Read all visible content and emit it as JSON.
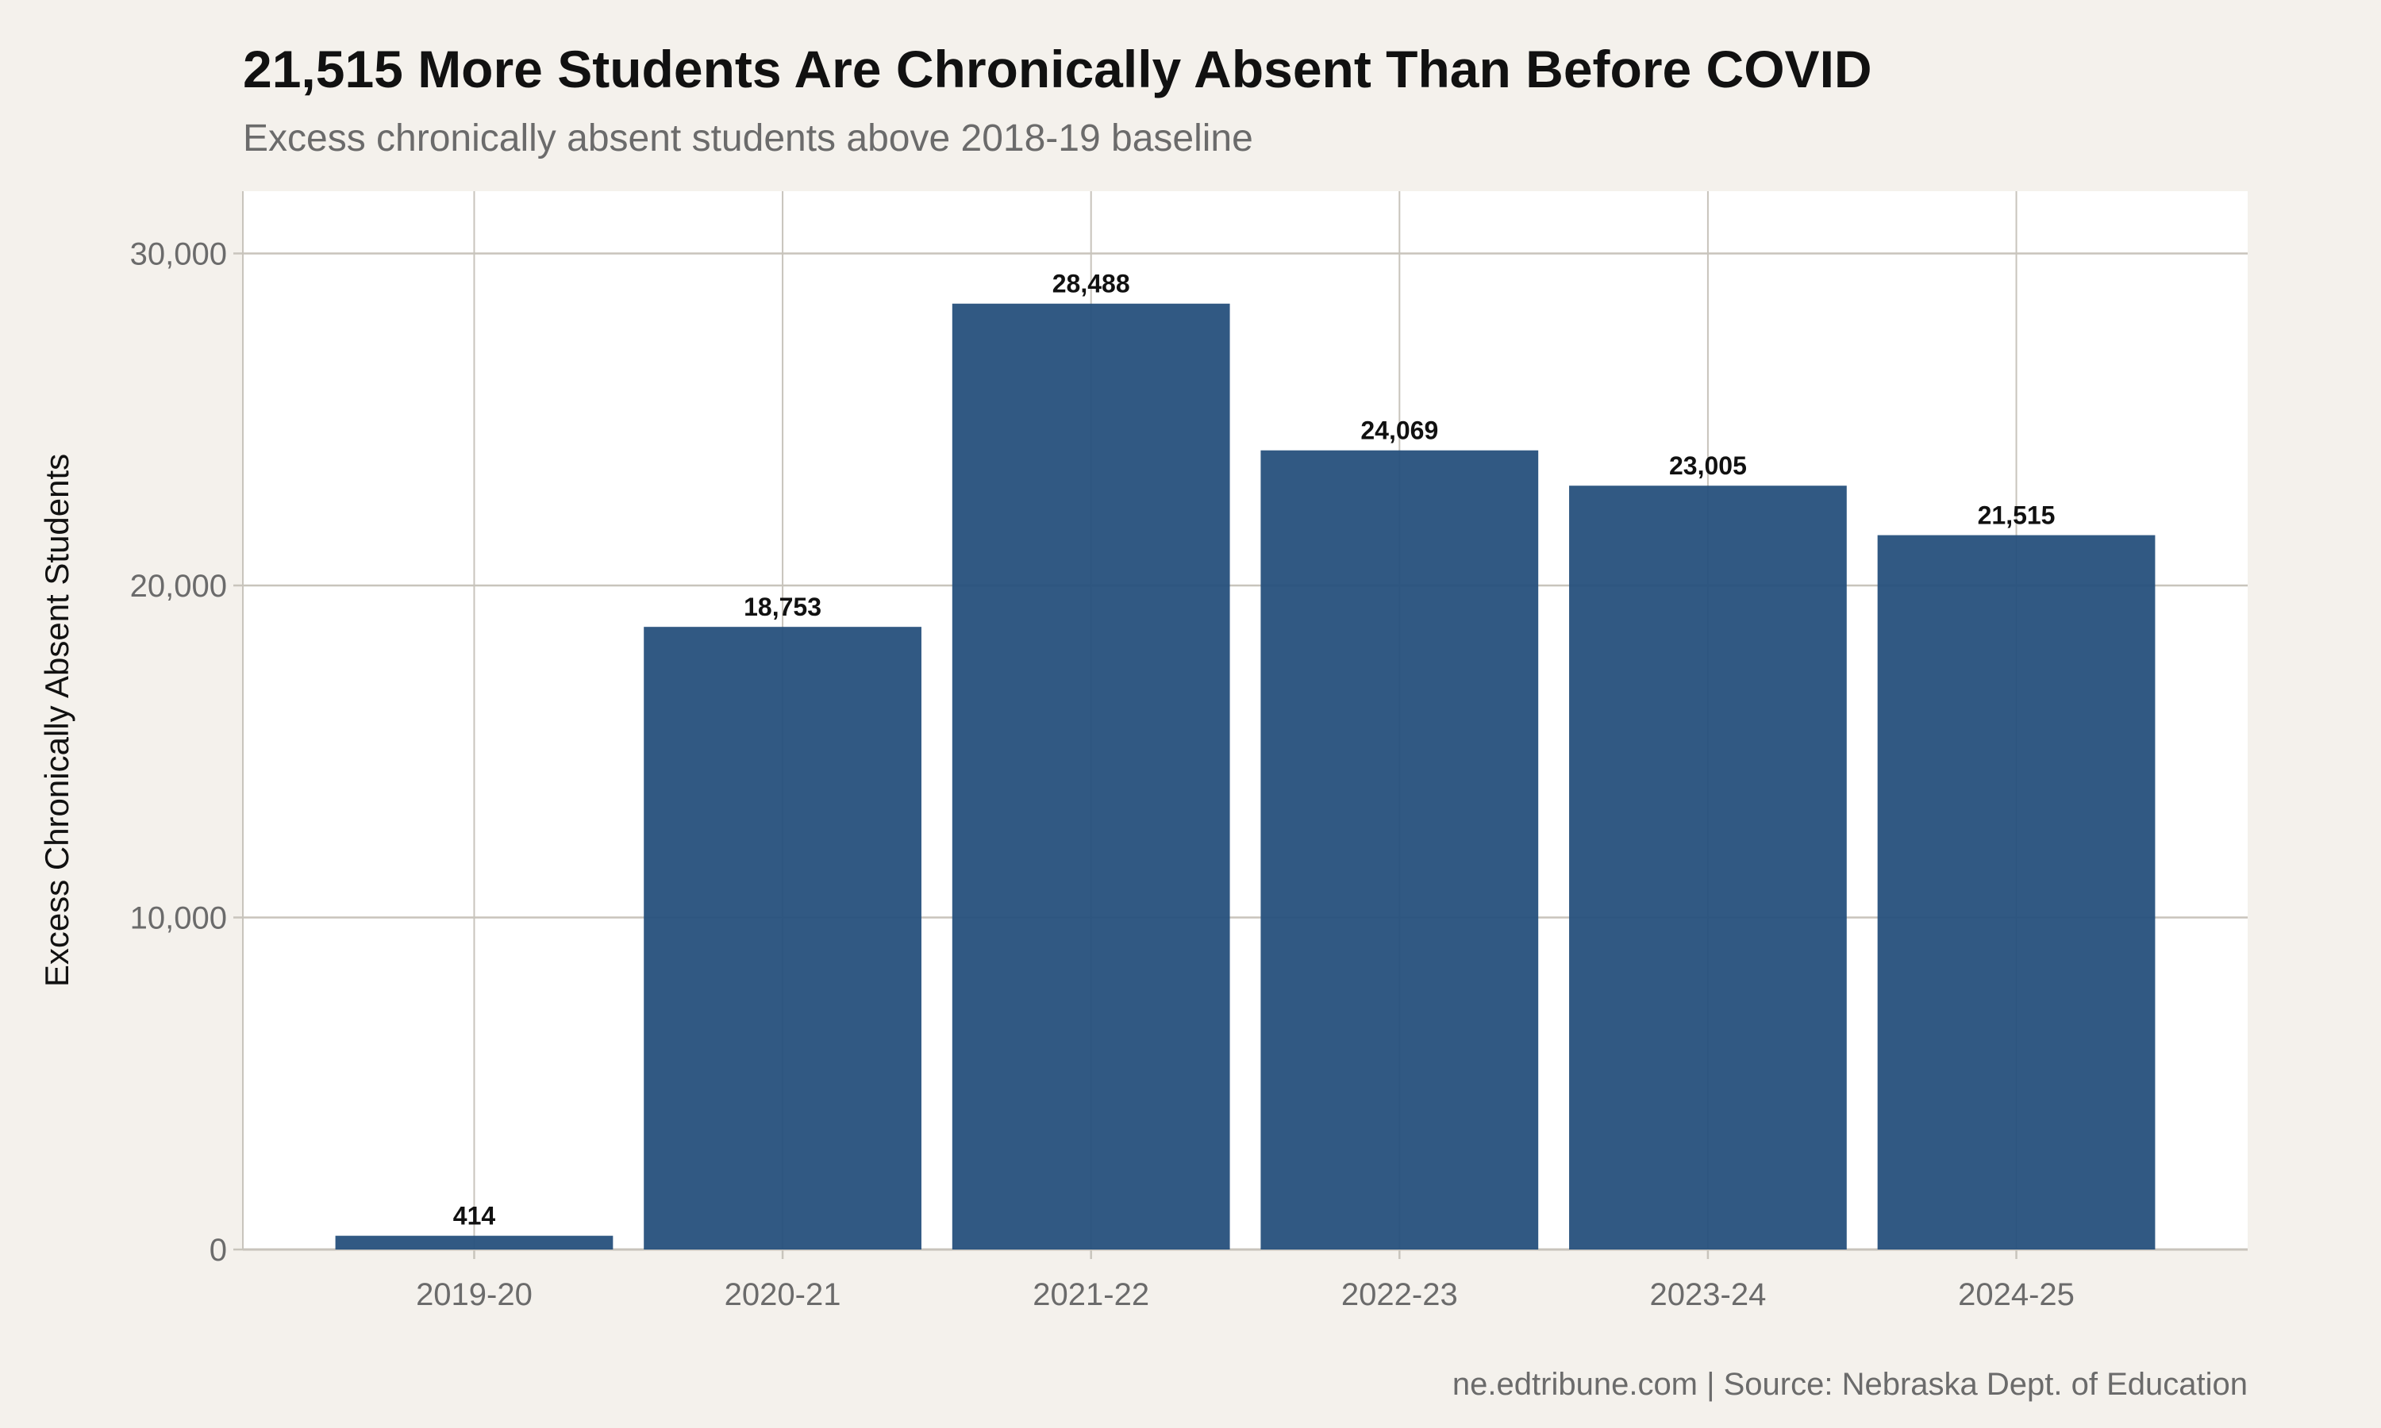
{
  "chart_data": {
    "type": "bar",
    "title": "21,515 More Students Are Chronically Absent Than Before COVID",
    "subtitle": "Excess chronically absent students above 2018-19 baseline",
    "xlabel": "",
    "ylabel": "Excess Chronically Absent Students",
    "caption": "ne.edtribune.com | Source: Nebraska Dept. of Education",
    "categories": [
      "2019-20",
      "2020-21",
      "2021-22",
      "2022-23",
      "2023-24",
      "2024-25"
    ],
    "values": [
      414,
      18753,
      28488,
      24069,
      23005,
      21515
    ],
    "data_labels": [
      "414",
      "18,753",
      "28,488",
      "24,069",
      "23,005",
      "21,515"
    ],
    "yticks": [
      0,
      10000,
      20000,
      30000
    ],
    "ytick_labels": [
      "0",
      "10,000",
      "20,000",
      "30,000"
    ],
    "ylim": [
      0,
      31875
    ],
    "grid": true,
    "legend": "none",
    "colors": {
      "bar": "#26507c",
      "background": "#f4f1ec",
      "panel": "#ffffff",
      "grid": "#c8c4bc"
    }
  }
}
